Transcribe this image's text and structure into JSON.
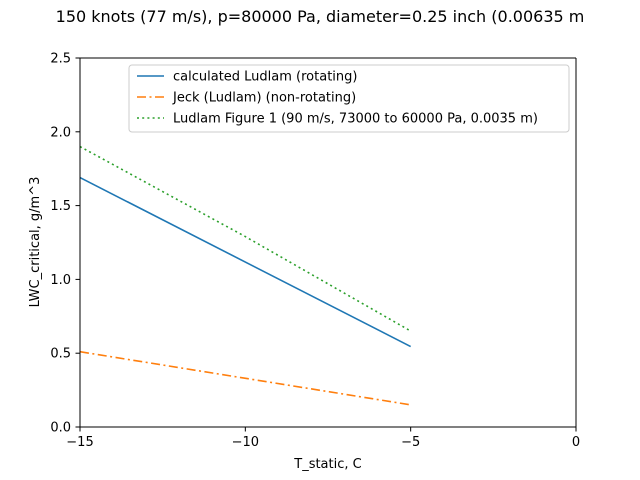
{
  "chart_data": {
    "type": "line",
    "title": "150 knots (77 m/s), p=80000 Pa, diameter=0.25 inch (0.00635 m",
    "xlabel": "T_static, C",
    "ylabel": "LWC_critical, g/m^3",
    "xlim": [
      -15,
      0
    ],
    "ylim": [
      0,
      2.5
    ],
    "xticks": [
      -15,
      -10,
      -5,
      0
    ],
    "xtick_labels": [
      "−15",
      "−10",
      "−5",
      "0"
    ],
    "yticks": [
      0,
      0.5,
      1.0,
      1.5,
      2.0,
      2.5
    ],
    "ytick_labels": [
      "0.0",
      "0.5",
      "1.0",
      "1.5",
      "2.0",
      "2.5"
    ],
    "grid": false,
    "legend_location": "upper right",
    "series": [
      {
        "name": "calculated Ludlam (rotating)",
        "color": "#1f77b4",
        "style": "solid",
        "x": [
          -15,
          -5
        ],
        "y": [
          1.69,
          0.545
        ]
      },
      {
        "name": "Jeck (Ludlam) (non-rotating)",
        "color": "#ff7f0e",
        "style": "dashdot",
        "x": [
          -15,
          -5
        ],
        "y": [
          0.51,
          0.15
        ]
      },
      {
        "name": "Ludlam Figure 1 (90 m/s, 73000 to 60000 Pa, 0.0035 m)",
        "color": "#2ca02c",
        "style": "dotted",
        "x": [
          -15,
          -10,
          -5
        ],
        "y": [
          1.9,
          1.29,
          0.65
        ]
      }
    ]
  }
}
